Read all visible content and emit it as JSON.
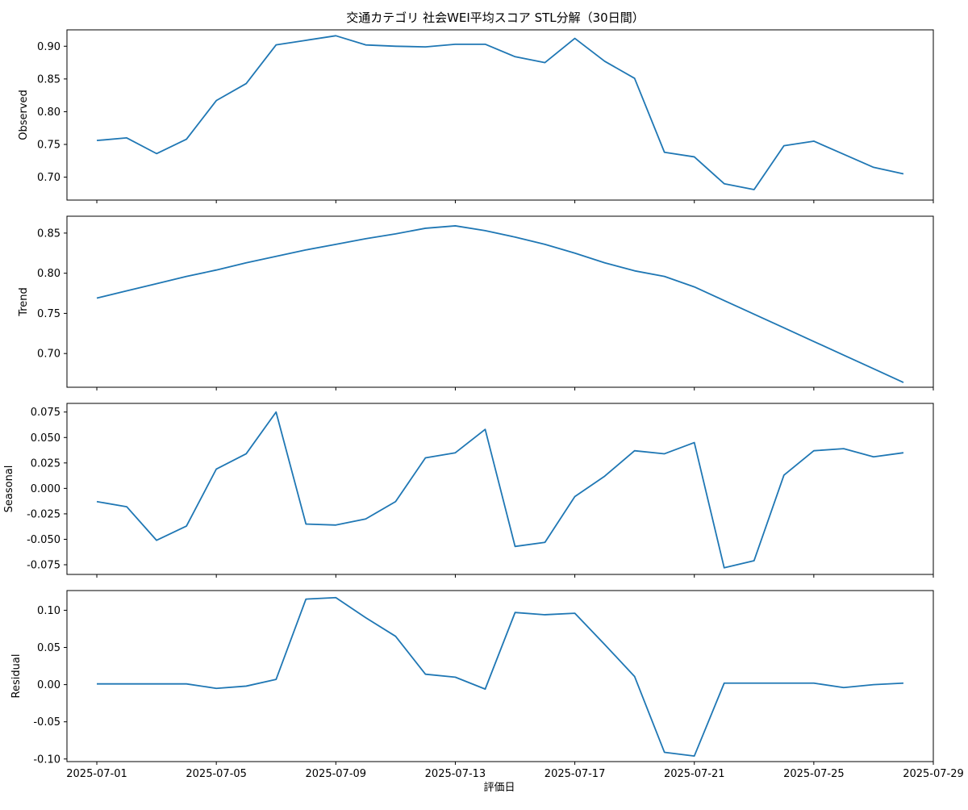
{
  "chart_data": {
    "type": "line",
    "title": "交通カテゴリ 社会WEI平均スコア STL分解（30日間）",
    "xlabel": "評価日",
    "x_dates": [
      "2025-07-01",
      "2025-07-02",
      "2025-07-03",
      "2025-07-04",
      "2025-07-05",
      "2025-07-06",
      "2025-07-07",
      "2025-07-08",
      "2025-07-09",
      "2025-07-10",
      "2025-07-11",
      "2025-07-12",
      "2025-07-13",
      "2025-07-14",
      "2025-07-15",
      "2025-07-16",
      "2025-07-17",
      "2025-07-18",
      "2025-07-19",
      "2025-07-20",
      "2025-07-21",
      "2025-07-22",
      "2025-07-23",
      "2025-07-24",
      "2025-07-25",
      "2025-07-26",
      "2025-07-27",
      "2025-07-28"
    ],
    "x_tick_labels": [
      "2025-07-01",
      "2025-07-05",
      "2025-07-09",
      "2025-07-13",
      "2025-07-17",
      "2025-07-21",
      "2025-07-25",
      "2025-07-29"
    ],
    "x_ticks": [
      "2025-07-01",
      "2025-07-05",
      "2025-07-09",
      "2025-07-13",
      "2025-07-17",
      "2025-07-21",
      "2025-07-25",
      "2025-07-29"
    ],
    "xlim": [
      "2025-06-30",
      "2025-07-29"
    ],
    "grid": false,
    "panels": [
      {
        "ylabel": "Observed",
        "ylim": [
          0.665,
          0.925
        ],
        "yticks": [
          0.7,
          0.75,
          0.8,
          0.85,
          0.9
        ],
        "ytick_labels": [
          "0.70",
          "0.75",
          "0.80",
          "0.85",
          "0.90"
        ],
        "values": [
          0.756,
          0.76,
          0.736,
          0.758,
          0.817,
          0.843,
          0.902,
          0.909,
          0.916,
          0.902,
          0.9,
          0.899,
          0.903,
          0.903,
          0.884,
          0.875,
          0.912,
          0.877,
          0.851,
          0.738,
          0.731,
          0.69,
          0.681,
          0.748,
          0.755,
          0.735,
          0.715,
          0.705
        ]
      },
      {
        "ylabel": "Trend",
        "ylim": [
          0.658,
          0.871
        ],
        "yticks": [
          0.7,
          0.75,
          0.8,
          0.85
        ],
        "ytick_labels": [
          "0.70",
          "0.75",
          "0.80",
          "0.85"
        ],
        "values": [
          0.769,
          0.778,
          0.787,
          0.796,
          0.804,
          0.813,
          0.821,
          0.829,
          0.836,
          0.843,
          0.849,
          0.856,
          0.859,
          0.853,
          0.845,
          0.836,
          0.825,
          0.813,
          0.803,
          0.796,
          0.783,
          0.766,
          0.749,
          0.732,
          0.715,
          0.698,
          0.681,
          0.664
        ]
      },
      {
        "ylabel": "Seasonal",
        "ylim": [
          -0.0845,
          0.0835
        ],
        "yticks": [
          -0.075,
          -0.05,
          -0.025,
          0.0,
          0.025,
          0.05,
          0.075
        ],
        "ytick_labels": [
          "-0.075",
          "-0.050",
          "-0.025",
          "0.000",
          "0.025",
          "0.050",
          "0.075"
        ],
        "values": [
          -0.013,
          -0.018,
          -0.051,
          -0.037,
          0.019,
          0.034,
          0.075,
          -0.035,
          -0.036,
          -0.03,
          -0.013,
          0.03,
          0.035,
          0.058,
          -0.057,
          -0.053,
          -0.008,
          0.012,
          0.037,
          0.034,
          0.045,
          -0.078,
          -0.071,
          0.013,
          0.037,
          0.039,
          0.031,
          0.035
        ]
      },
      {
        "ylabel": "Residual",
        "ylim": [
          -0.1035,
          0.1265
        ],
        "yticks": [
          -0.1,
          -0.05,
          0.0,
          0.05,
          0.1
        ],
        "ytick_labels": [
          "-0.10",
          "-0.05",
          "0.00",
          "0.05",
          "0.10"
        ],
        "values": [
          0.001,
          0.001,
          0.001,
          0.001,
          -0.005,
          -0.002,
          0.007,
          0.115,
          0.117,
          0.09,
          0.065,
          0.014,
          0.01,
          -0.006,
          0.097,
          0.094,
          0.096,
          0.054,
          0.011,
          -0.091,
          -0.096,
          0.002,
          0.002,
          0.002,
          0.002,
          -0.004,
          0.0,
          0.002
        ]
      }
    ],
    "colors": {
      "series": "#1f77b4",
      "frame": "#000000",
      "background": "#ffffff"
    }
  }
}
